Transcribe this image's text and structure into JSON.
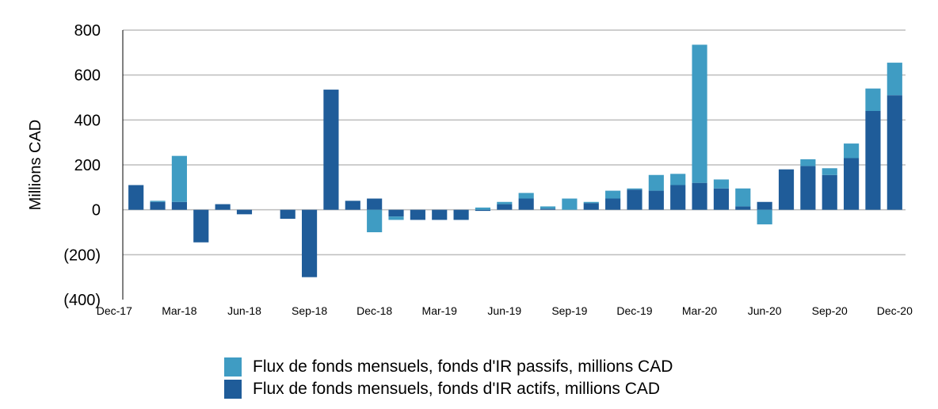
{
  "chart_data": {
    "type": "bar",
    "stacked": true,
    "ylabel": "Millions CAD",
    "ylim": [
      -400,
      800
    ],
    "yticks": [
      800,
      600,
      400,
      200,
      0,
      -200,
      -400
    ],
    "ytick_labels": [
      "800",
      "600",
      "400",
      "200",
      "0",
      "(200)",
      "(400)"
    ],
    "grid": true,
    "legend_position": "bottom",
    "xtick_labels": [
      "Dec-17",
      "Mar-18",
      "Jun-18",
      "Sep-18",
      "Dec-18",
      "Mar-19",
      "Jun-19",
      "Sep-19",
      "Dec-19",
      "Mar-20",
      "Jun-20",
      "Sep-20",
      "Dec-20"
    ],
    "categories": [
      "Jan-18",
      "Feb-18",
      "Mar-18",
      "Apr-18",
      "May-18",
      "Jun-18",
      "Jul-18",
      "Aug-18",
      "Sep-18",
      "Oct-18",
      "Nov-18",
      "Dec-18",
      "Jan-19",
      "Feb-19",
      "Mar-19",
      "Apr-19",
      "May-19",
      "Jun-19",
      "Jul-19",
      "Aug-19",
      "Sep-19",
      "Oct-19",
      "Nov-19",
      "Dec-19",
      "Jan-20",
      "Feb-20",
      "Mar-20",
      "Apr-20",
      "May-20",
      "Jun-20",
      "Jul-20",
      "Aug-20",
      "Sep-20",
      "Oct-20",
      "Nov-20",
      "Dec-20"
    ],
    "series": [
      {
        "name": "Flux de fonds mensuels, fonds d'IR actifs, millions CAD",
        "color": "#1f5c99",
        "values": [
          110,
          35,
          35,
          -145,
          25,
          -20,
          0,
          -40,
          -300,
          535,
          40,
          50,
          -30,
          -45,
          -45,
          -45,
          -5,
          25,
          50,
          5,
          0,
          30,
          50,
          90,
          85,
          110,
          120,
          95,
          15,
          35,
          180,
          195,
          155,
          230,
          440,
          510
        ]
      },
      {
        "name": "Flux de fonds mensuels, fonds d'IR passifs, millions CAD",
        "color": "#3f9cc3",
        "values": [
          0,
          5,
          205,
          0,
          0,
          0,
          0,
          0,
          0,
          0,
          0,
          -100,
          -15,
          0,
          0,
          0,
          10,
          10,
          25,
          10,
          50,
          5,
          35,
          5,
          70,
          50,
          615,
          40,
          80,
          -65,
          0,
          30,
          30,
          65,
          100,
          145
        ]
      }
    ]
  }
}
